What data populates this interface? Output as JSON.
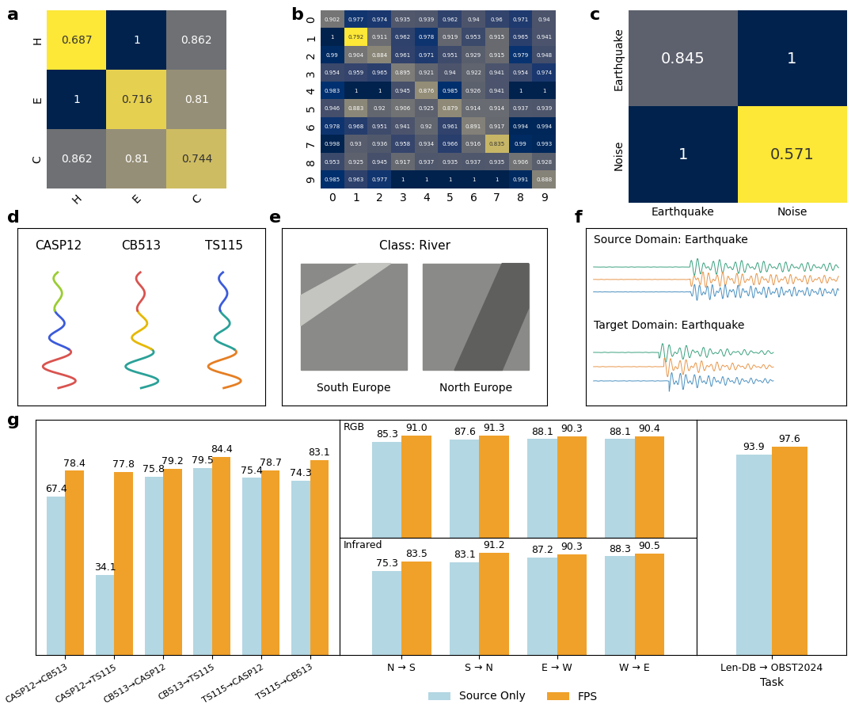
{
  "chart_data": [
    {
      "type": "heatmap",
      "panel_label": "a",
      "x_categories": [
        "H",
        "E",
        "C"
      ],
      "y_categories": [
        "H",
        "E",
        "C"
      ],
      "cells": [
        [
          0.687,
          1,
          0.862
        ],
        [
          1,
          0.716,
          0.81
        ],
        [
          0.862,
          0.81,
          0.744
        ]
      ],
      "data_labels": true
    },
    {
      "type": "heatmap",
      "panel_label": "b",
      "x_categories": [
        "0",
        "1",
        "2",
        "3",
        "4",
        "5",
        "6",
        "7",
        "8",
        "9"
      ],
      "y_categories": [
        "0",
        "1",
        "2",
        "3",
        "4",
        "5",
        "6",
        "7",
        "8",
        "9"
      ],
      "cells": [
        [
          0.902,
          0.977,
          0.974,
          0.935,
          0.939,
          0.962,
          0.94,
          0.96,
          0.971,
          0.94
        ],
        [
          1,
          0.792,
          0.911,
          0.962,
          0.978,
          0.919,
          0.953,
          0.915,
          0.965,
          0.941
        ],
        [
          0.99,
          0.904,
          0.884,
          0.961,
          0.971,
          0.951,
          0.929,
          0.915,
          0.979,
          0.948
        ],
        [
          0.954,
          0.959,
          0.965,
          0.895,
          0.921,
          0.94,
          0.922,
          0.941,
          0.954,
          0.974
        ],
        [
          0.983,
          1,
          1,
          0.945,
          0.876,
          0.985,
          0.926,
          0.941,
          1,
          1
        ],
        [
          0.946,
          0.883,
          0.92,
          0.906,
          0.925,
          0.879,
          0.914,
          0.914,
          0.937,
          0.939
        ],
        [
          0.978,
          0.968,
          0.951,
          0.941,
          0.92,
          0.961,
          0.891,
          0.917,
          0.994,
          0.994
        ],
        [
          0.998,
          0.93,
          0.936,
          0.958,
          0.934,
          0.966,
          0.916,
          0.835,
          0.99,
          0.993
        ],
        [
          0.953,
          0.925,
          0.945,
          0.917,
          0.937,
          0.935,
          0.937,
          0.935,
          0.906,
          0.928
        ],
        [
          0.985,
          0.963,
          0.977,
          1,
          1,
          1,
          1,
          1,
          0.991,
          0.888
        ]
      ],
      "data_labels": true
    },
    {
      "type": "heatmap",
      "panel_label": "c",
      "x_categories": [
        "Earthquake",
        "Noise"
      ],
      "y_categories": [
        "Earthquake",
        "Noise"
      ],
      "cells": [
        [
          0.845,
          1
        ],
        [
          1,
          0.571
        ]
      ],
      "data_labels": true
    },
    {
      "type": "bar",
      "panel_label": "g",
      "categories": [
        "CASP12→CB513",
        "CASP12→TS115",
        "CB513→CASP12",
        "CB513→TS115",
        "TS115→CASP12",
        "TS115→CB513"
      ],
      "series": [
        {
          "name": "Source Only",
          "color": "#b3d7e3",
          "values": [
            67.4,
            34.1,
            75.8,
            79.5,
            75.4,
            74.3
          ]
        },
        {
          "name": "FPS",
          "color": "#f0a12a",
          "values": [
            78.4,
            77.8,
            79.2,
            84.4,
            78.7,
            83.1
          ]
        }
      ],
      "ylim": [
        0,
        100
      ],
      "data_labels": true,
      "tick_labels": "x",
      "legend": "lower center"
    },
    {
      "type": "bar",
      "title": "RGB",
      "categories": [
        "N → S",
        "S → N",
        "E → W",
        "W → E"
      ],
      "series": [
        {
          "name": "Source Only",
          "color": "#b3d7e3",
          "values": [
            85.3,
            87.6,
            88.1,
            88.1
          ]
        },
        {
          "name": "FPS",
          "color": "#f0a12a",
          "values": [
            91.0,
            91.3,
            90.3,
            90.4
          ]
        }
      ],
      "ylim": [
        0,
        105
      ],
      "data_labels": true,
      "tick_labels": false
    },
    {
      "type": "bar",
      "title": "Infrared",
      "categories": [
        "N → S",
        "S → N",
        "E → W",
        "W → E"
      ],
      "series": [
        {
          "name": "Source Only",
          "color": "#b3d7e3",
          "values": [
            75.3,
            83.1,
            87.2,
            88.3
          ]
        },
        {
          "name": "FPS",
          "color": "#f0a12a",
          "values": [
            83.5,
            91.2,
            90.3,
            90.5
          ]
        }
      ],
      "ylim": [
        0,
        105
      ],
      "data_labels": true,
      "tick_labels": "x"
    },
    {
      "type": "bar",
      "x_label": "Task",
      "categories": [
        "Len-DB → OBST2024"
      ],
      "series": [
        {
          "name": "Source Only",
          "color": "#b3d7e3",
          "values": [
            93.9
          ]
        },
        {
          "name": "FPS",
          "color": "#f0a12a",
          "values": [
            97.6
          ]
        }
      ],
      "ylim": [
        0,
        110
      ],
      "data_labels": true,
      "tick_labels": "x"
    }
  ],
  "diagrams": {
    "d": {
      "panel_label": "d",
      "labels": [
        "CASP12",
        "CB513",
        "TS115"
      ]
    },
    "e": {
      "panel_label": "e",
      "title": "Class: River",
      "labels": [
        "South Europe",
        "North Europe"
      ]
    },
    "f": {
      "panel_label": "f",
      "labels": [
        "Source Domain: Earthquake",
        "Target Domain: Earthquake"
      ]
    }
  }
}
